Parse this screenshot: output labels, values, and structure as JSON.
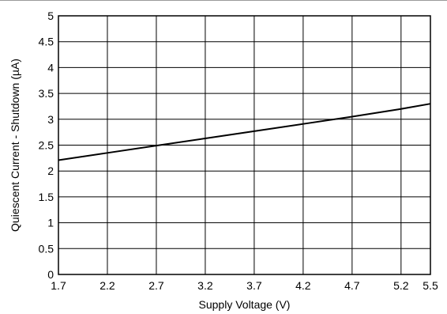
{
  "chart_data": {
    "type": "line",
    "title": "",
    "xlabel": "Supply Voltage (V)",
    "ylabel": "Quiescent Current - Shutdown (µA)",
    "xlim": [
      1.7,
      5.5
    ],
    "ylim": [
      0,
      5
    ],
    "x_ticks": [
      1.7,
      2.2,
      2.7,
      3.2,
      3.7,
      4.2,
      4.7,
      5.2,
      5.5
    ],
    "x_tick_labels": [
      "1.7",
      "2.2",
      "2.7",
      "3.2",
      "3.7",
      "4.2",
      "4.7",
      "5.2",
      "5.5"
    ],
    "y_ticks": [
      0,
      0.5,
      1,
      1.5,
      2,
      2.5,
      3,
      3.5,
      4,
      4.5,
      5
    ],
    "y_tick_labels": [
      "0",
      "0.5",
      "1",
      "1.5",
      "2",
      "2.5",
      "3",
      "3.5",
      "4",
      "4.5",
      "5"
    ],
    "grid": true,
    "legend": "none",
    "series": [
      {
        "color": "#000000",
        "x": [
          1.7,
          2.2,
          2.7,
          3.2,
          3.7,
          4.2,
          4.7,
          5.2,
          5.5
        ],
        "y": [
          2.21,
          2.35,
          2.49,
          2.63,
          2.77,
          2.91,
          3.05,
          3.2,
          3.3
        ]
      }
    ]
  }
}
